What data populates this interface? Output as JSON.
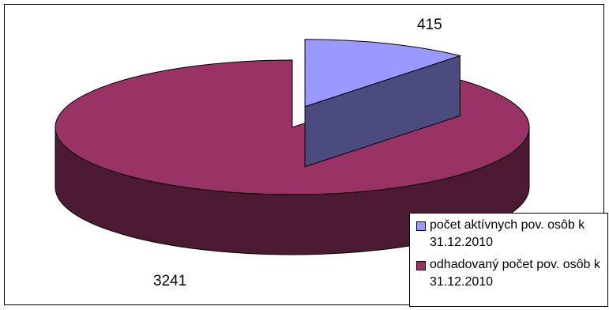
{
  "chart_data": {
    "type": "pie",
    "three_d": true,
    "exploded_slice": 0,
    "slices": [
      {
        "label": "počet aktívnych pov. osôb k 31.12.2010",
        "value": 415,
        "data_label": "415",
        "color": "#9999ff",
        "side_color": "#4b4b7f"
      },
      {
        "label": "odhadovaný počet pov. osôb k 31.12.2010",
        "value": 3241,
        "data_label": "3241",
        "color": "#993366",
        "side_color": "#4c1a33"
      }
    ],
    "legend_position": "bottom-right"
  }
}
